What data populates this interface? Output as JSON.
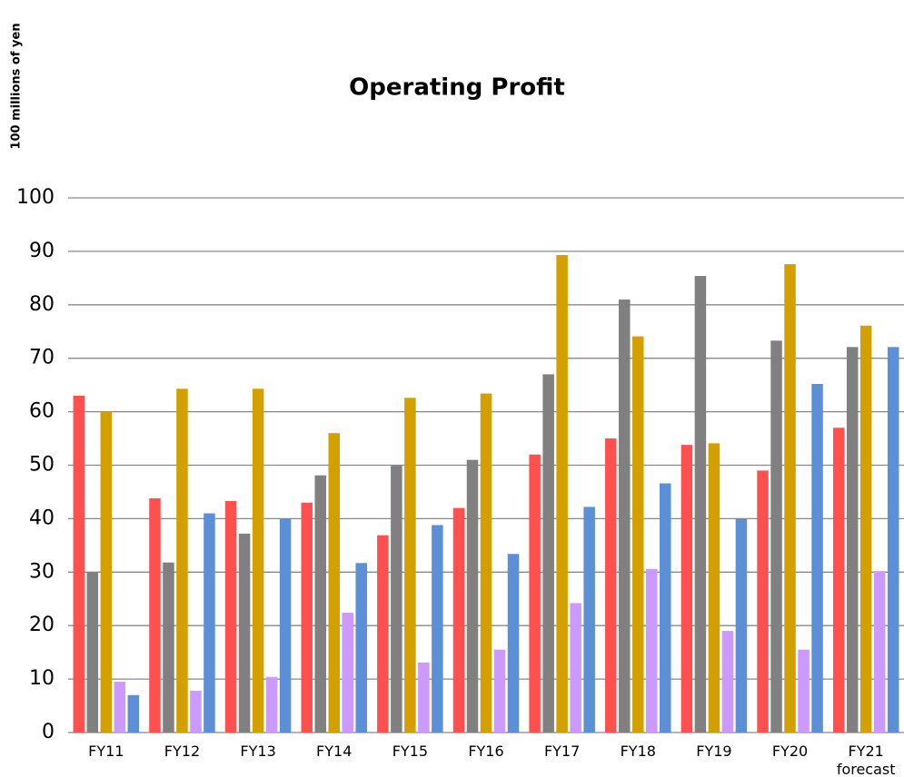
{
  "chart_data": {
    "type": "bar",
    "title": "Operating Profit",
    "y_label": "100 millions of yen",
    "categories": [
      "FY11",
      "FY12",
      "FY13",
      "FY14",
      "FY15",
      "FY16",
      "FY17",
      "FY18",
      "FY19",
      "FY20",
      "FY21\nforecast"
    ],
    "series": [
      {
        "color": "#ff5050",
        "values": [
          63,
          43.8,
          43.3,
          43,
          36.9,
          42,
          52,
          55,
          53.8,
          49,
          57
        ]
      },
      {
        "color": "#808080",
        "values": [
          30,
          31.8,
          37.2,
          48.1,
          49.9,
          51,
          67,
          81,
          85.4,
          73.3,
          72.1
        ]
      },
      {
        "color": "#d4a000",
        "values": [
          60,
          64.3,
          64.3,
          56,
          62.6,
          63.4,
          89.3,
          74.1,
          54.1,
          87.6,
          76.1
        ]
      },
      {
        "color": "#cc99ff",
        "values": [
          9.5,
          7.8,
          10.4,
          22.4,
          13.1,
          15.5,
          24.2,
          30.6,
          19,
          15.5,
          30.2
        ]
      },
      {
        "color": "#5b8fd6",
        "values": [
          7,
          41,
          40,
          31.7,
          38.8,
          33.4,
          42.2,
          46.6,
          39.9,
          65.2,
          72.1
        ]
      }
    ],
    "ylim": [
      0,
      100
    ],
    "yticks": [
      0,
      10,
      20,
      30,
      40,
      50,
      60,
      70,
      80,
      90,
      100
    ],
    "grid": true
  }
}
